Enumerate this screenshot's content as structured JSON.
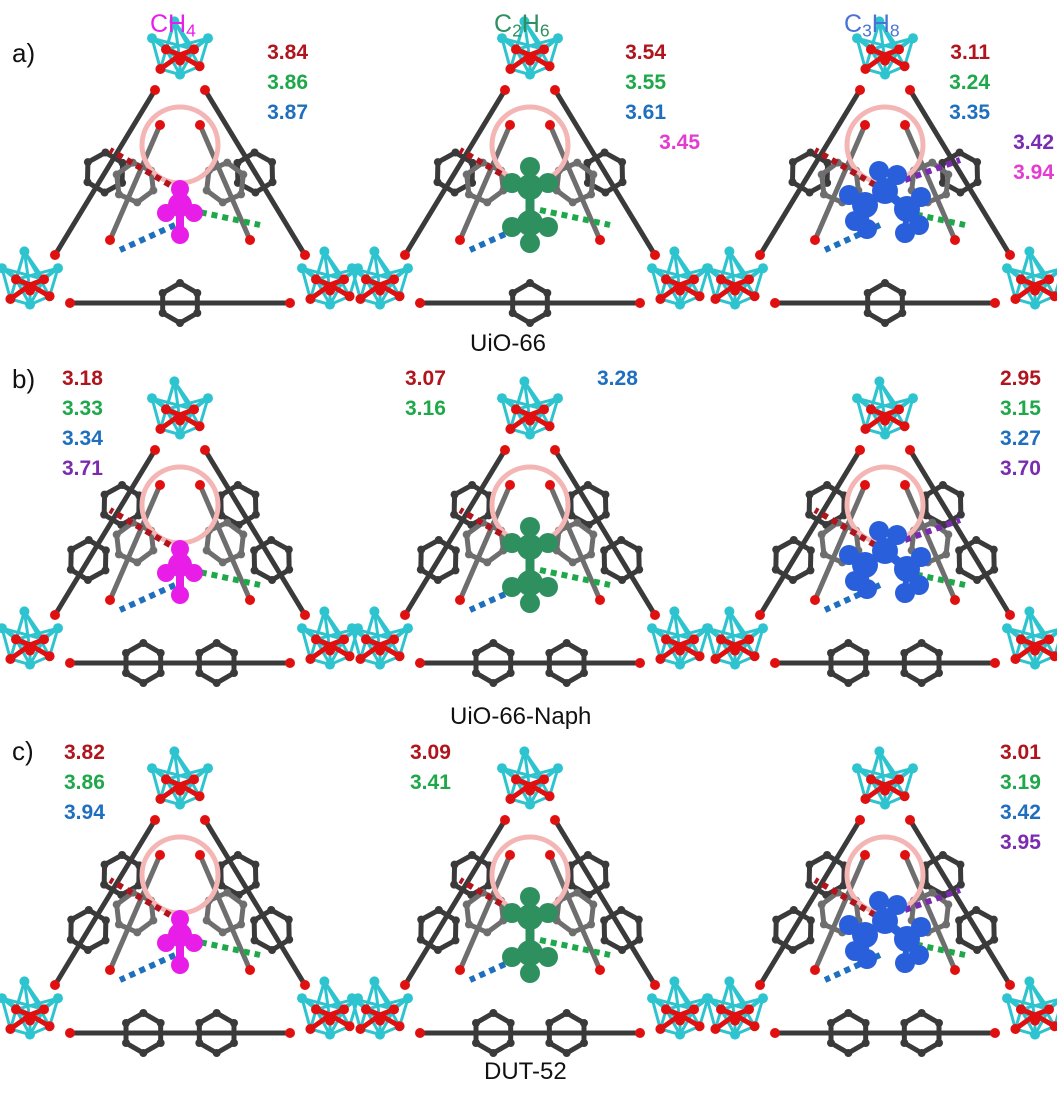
{
  "colors": {
    "zr": "#2ec4cf",
    "oxygen": "#e01010",
    "carbon": "#3a3a3a",
    "carbon_back": "#6e6e6e",
    "ch4": "#e81ee8",
    "c2h6": "#2e8f5f",
    "c3h8": "#2a5fdb",
    "dist_red": "#b0141c",
    "dist_green": "#1fa84a",
    "dist_blue": "#1f6fbf",
    "dist_purple": "#7a2bb0",
    "dist_magenta": "#e33ccf"
  },
  "gases": [
    {
      "base": "CH",
      "sub1": "4",
      "mid": "",
      "sub2": "",
      "color": "#e81ee8"
    },
    {
      "base": "C",
      "sub1": "2",
      "mid": "H",
      "sub2": "6",
      "color": "#2e8f5f"
    },
    {
      "base": "C",
      "sub1": "3",
      "mid": "H",
      "sub2": "8",
      "color": "#4a72d6"
    }
  ],
  "rows": [
    {
      "letter": "a)",
      "framework": "UiO-66"
    },
    {
      "letter": "b)",
      "framework": "UiO-66-Naph"
    },
    {
      "letter": "c)",
      "framework": "DUT-52"
    }
  ],
  "distances": {
    "a": [
      [
        {
          "v": "3.84",
          "c": "dist_red"
        },
        {
          "v": "3.86",
          "c": "dist_green"
        },
        {
          "v": "3.87",
          "c": "dist_blue"
        }
      ],
      [
        {
          "v": "3.54",
          "c": "dist_red"
        },
        {
          "v": "3.55",
          "c": "dist_green"
        },
        {
          "v": "3.61",
          "c": "dist_blue"
        },
        {
          "v": "3.45",
          "c": "dist_magenta"
        }
      ],
      [
        {
          "v": "3.11",
          "c": "dist_red"
        },
        {
          "v": "3.24",
          "c": "dist_green"
        },
        {
          "v": "3.35",
          "c": "dist_blue"
        },
        {
          "v": "3.42",
          "c": "dist_purple"
        },
        {
          "v": "3.94",
          "c": "dist_magenta"
        }
      ]
    ],
    "b": [
      [
        {
          "v": "3.18",
          "c": "dist_red"
        },
        {
          "v": "3.33",
          "c": "dist_green"
        },
        {
          "v": "3.34",
          "c": "dist_blue"
        },
        {
          "v": "3.71",
          "c": "dist_purple"
        }
      ],
      [
        {
          "v": "3.07",
          "c": "dist_red"
        },
        {
          "v": "3.16",
          "c": "dist_green"
        },
        {
          "v": "3.28",
          "c": "dist_blue"
        }
      ],
      [
        {
          "v": "2.95",
          "c": "dist_red"
        },
        {
          "v": "3.15",
          "c": "dist_green"
        },
        {
          "v": "3.27",
          "c": "dist_blue"
        },
        {
          "v": "3.70",
          "c": "dist_purple"
        }
      ]
    ],
    "c": [
      [
        {
          "v": "3.82",
          "c": "dist_red"
        },
        {
          "v": "3.86",
          "c": "dist_green"
        },
        {
          "v": "3.94",
          "c": "dist_blue"
        }
      ],
      [
        {
          "v": "3.09",
          "c": "dist_red"
        },
        {
          "v": "3.41",
          "c": "dist_green"
        }
      ],
      [
        {
          "v": "3.01",
          "c": "dist_red"
        },
        {
          "v": "3.19",
          "c": "dist_green"
        },
        {
          "v": "3.42",
          "c": "dist_blue"
        },
        {
          "v": "3.95",
          "c": "dist_purple"
        }
      ]
    ]
  }
}
